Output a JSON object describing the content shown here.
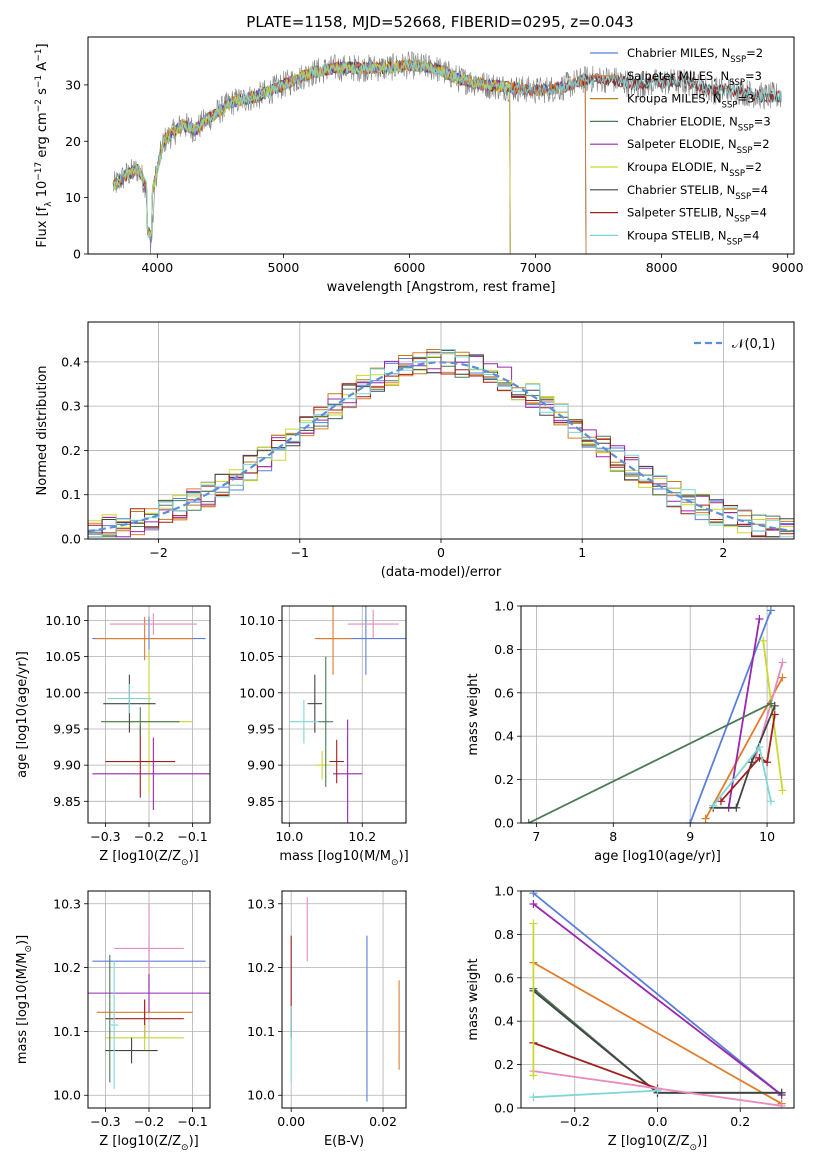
{
  "title": "PLATE=1158, MJD=52668, FIBERID=0295, z=0.043",
  "colors": [
    "#5b7fd9",
    "#e07c2a",
    "#c07d1a",
    "#4a7a57",
    "#9a27b0",
    "#c9d92f",
    "#444444",
    "#a01f1f",
    "#7fd6d6",
    "#e88bbf",
    "#7f7f7f"
  ],
  "chart_data": [
    {
      "id": "spectrum",
      "type": "line",
      "xlabel": "wavelength [Angstrom, rest frame]",
      "ylabel": "Flux [f_λ 10^-17 erg cm^-2 s^-1 A^-1]",
      "xlim": [
        3450,
        9050
      ],
      "ylim": [
        0,
        38.5
      ],
      "xticks": [
        4000,
        5000,
        6000,
        7000,
        8000,
        9000
      ],
      "yticks": [
        0,
        10,
        20,
        30
      ],
      "legend_position": "top-right",
      "legend": [
        {
          "label": "Chabrier MILES, N_SSP=2",
          "color": "#5b7fd9"
        },
        {
          "label": "Salpeter MILES, N_SSP=3",
          "color": "#e07c2a"
        },
        {
          "label": "Kroupa MILES, N_SSP=3",
          "color": "#c07d1a"
        },
        {
          "label": "Chabrier ELODIE, N_SSP=3",
          "color": "#4a7a57"
        },
        {
          "label": "Salpeter ELODIE, N_SSP=2",
          "color": "#9a27b0"
        },
        {
          "label": "Kroupa ELODIE, N_SSP=2",
          "color": "#c9d92f"
        },
        {
          "label": "Chabrier STELIB, N_SSP=4",
          "color": "#444444"
        },
        {
          "label": "Salpeter STELIB, N_SSP=4",
          "color": "#a01f1f"
        },
        {
          "label": "Kroupa STELIB, N_SSP=4",
          "color": "#7fd6d6"
        }
      ],
      "continuum": [
        [
          3650,
          12
        ],
        [
          3750,
          14
        ],
        [
          3850,
          15
        ],
        [
          3950,
          10
        ],
        [
          4050,
          20
        ],
        [
          4200,
          23
        ],
        [
          4300,
          22
        ],
        [
          4400,
          24
        ],
        [
          4600,
          27
        ],
        [
          4800,
          28
        ],
        [
          5000,
          30
        ],
        [
          5200,
          32
        ],
        [
          5400,
          33
        ],
        [
          5600,
          33
        ],
        [
          5800,
          33
        ],
        [
          6000,
          33.5
        ],
        [
          6200,
          33
        ],
        [
          6400,
          31
        ],
        [
          6600,
          30
        ],
        [
          6800,
          29.5
        ],
        [
          7000,
          29
        ],
        [
          7200,
          29.5
        ],
        [
          7400,
          31
        ],
        [
          7600,
          31
        ],
        [
          7800,
          30
        ],
        [
          8000,
          30.5
        ],
        [
          8200,
          30.5
        ],
        [
          8400,
          29
        ],
        [
          8600,
          29
        ],
        [
          8800,
          28
        ],
        [
          8950,
          28
        ]
      ],
      "model_end": {
        "miles": 7400,
        "elodie": 6800,
        "stelib": 8950
      }
    },
    {
      "id": "residuals",
      "type": "histogram",
      "xlabel": "(data-model)/error",
      "ylabel": "Normed distribution",
      "xlim": [
        -2.5,
        2.5
      ],
      "ylim": [
        0,
        0.49
      ],
      "xticks": [
        -2,
        -1,
        0,
        1,
        2
      ],
      "yticks": [
        0.0,
        0.1,
        0.2,
        0.3,
        0.4
      ],
      "legend_position": "top-right",
      "reference_curve": {
        "label": "𝒩(0,1)",
        "mean": 0,
        "std": 1,
        "color": "#5b8fd9"
      }
    },
    {
      "id": "age_vs_Z",
      "type": "scatter",
      "xlabel": "Z [log10(Z/Z_sun)]",
      "ylabel": "age [log10(age/yr)]",
      "xlim": [
        -0.34,
        -0.06
      ],
      "ylim": [
        9.82,
        10.12
      ],
      "xticks": [
        -0.3,
        -0.2,
        -0.1
      ],
      "yticks": [
        9.85,
        9.9,
        9.95,
        10.0,
        10.05,
        10.1
      ],
      "points": [
        {
          "x": -0.2,
          "y": 10.075,
          "xerr": 0.13,
          "yerr": 0.03,
          "color": "#5b7fd9"
        },
        {
          "x": -0.21,
          "y": 10.075,
          "xerr": 0.11,
          "yerr": 0.03,
          "color": "#e07c2a"
        },
        {
          "x": -0.19,
          "y": 10.095,
          "xerr": 0.1,
          "yerr": 0.015,
          "color": "#e88bbf"
        },
        {
          "x": -0.2,
          "y": 9.96,
          "xerr": 0.1,
          "yerr": 0.1,
          "color": "#c9d92f"
        },
        {
          "x": -0.19,
          "y": 9.888,
          "xerr": 0.14,
          "yerr": 0.05,
          "color": "#9a27b0"
        },
        {
          "x": -0.22,
          "y": 9.905,
          "xerr": 0.08,
          "yerr": 0.05,
          "color": "#a01f1f"
        },
        {
          "x": -0.22,
          "y": 9.96,
          "xerr": 0.09,
          "yerr": 0.02,
          "color": "#4a7a57"
        },
        {
          "x": -0.245,
          "y": 9.985,
          "xerr": 0.06,
          "yerr": 0.04,
          "color": "#444444"
        },
        {
          "x": -0.245,
          "y": 9.992,
          "xerr": 0.05,
          "yerr": 0.02,
          "color": "#7fd6d6"
        }
      ]
    },
    {
      "id": "age_vs_mass",
      "type": "scatter",
      "xlabel": "mass [log10(M/M_sun)]",
      "ylabel": "",
      "xlim": [
        9.98,
        10.32
      ],
      "ylim": [
        9.82,
        10.12
      ],
      "xticks": [
        10.0,
        10.2
      ],
      "yticks": [
        9.85,
        9.9,
        9.95,
        10.0,
        10.05,
        10.1
      ],
      "points": [
        {
          "x": 10.21,
          "y": 10.075,
          "xerr": 0.13,
          "yerr": 0.05,
          "color": "#5b7fd9"
        },
        {
          "x": 10.12,
          "y": 10.075,
          "xerr": 0.05,
          "yerr": 0.05,
          "color": "#e07c2a"
        },
        {
          "x": 10.23,
          "y": 10.095,
          "xerr": 0.07,
          "yerr": 0.02,
          "color": "#e88bbf"
        },
        {
          "x": 10.09,
          "y": 9.9,
          "xerr": 0.02,
          "yerr": 0.02,
          "color": "#c9d92f"
        },
        {
          "x": 10.16,
          "y": 9.888,
          "xerr": 0.04,
          "yerr": 0.075,
          "color": "#9a27b0"
        },
        {
          "x": 10.13,
          "y": 9.905,
          "xerr": 0.02,
          "yerr": 0.03,
          "color": "#a01f1f"
        },
        {
          "x": 10.1,
          "y": 9.96,
          "xerr": 0.02,
          "yerr": 0.09,
          "color": "#4a7a57"
        },
        {
          "x": 10.07,
          "y": 9.985,
          "xerr": 0.02,
          "yerr": 0.04,
          "color": "#444444"
        },
        {
          "x": 10.04,
          "y": 9.96,
          "xerr": 0.04,
          "yerr": 0.03,
          "color": "#7fd6d6"
        }
      ]
    },
    {
      "id": "weight_vs_age",
      "type": "line",
      "xlabel": "age [log10(age/yr)]",
      "ylabel": "mass weight",
      "xlim": [
        6.8,
        10.35
      ],
      "ylim": [
        0,
        1.0
      ],
      "xticks": [
        7,
        8,
        9,
        10
      ],
      "yticks": [
        0.0,
        0.2,
        0.4,
        0.6,
        0.8,
        1.0
      ],
      "series": [
        {
          "color": "#5b7fd9",
          "points": [
            [
              9.0,
              0.0
            ],
            [
              10.05,
              0.98
            ]
          ]
        },
        {
          "color": "#e07c2a",
          "points": [
            [
              9.2,
              0.02
            ],
            [
              10.2,
              0.67
            ]
          ]
        },
        {
          "color": "#e88bbf",
          "points": [
            [
              9.85,
              0.3
            ],
            [
              10.2,
              0.74
            ]
          ]
        },
        {
          "color": "#9a27b0",
          "points": [
            [
              9.5,
              0.07
            ],
            [
              9.9,
              0.94
            ]
          ]
        },
        {
          "color": "#c9d92f",
          "points": [
            [
              9.95,
              0.84
            ],
            [
              10.2,
              0.15
            ]
          ]
        },
        {
          "color": "#4a7a57",
          "points": [
            [
              6.9,
              0.0
            ],
            [
              10.05,
              0.55
            ]
          ]
        },
        {
          "color": "#444444",
          "points": [
            [
              9.3,
              0.07
            ],
            [
              9.6,
              0.07
            ],
            [
              9.8,
              0.28
            ],
            [
              10.1,
              0.54
            ]
          ]
        },
        {
          "color": "#a01f1f",
          "points": [
            [
              9.4,
              0.1
            ],
            [
              9.9,
              0.3
            ],
            [
              10.0,
              0.28
            ],
            [
              10.1,
              0.5
            ]
          ]
        },
        {
          "color": "#7fd6d6",
          "points": [
            [
              9.3,
              0.08
            ],
            [
              9.9,
              0.35
            ],
            [
              10.05,
              0.1
            ]
          ]
        }
      ]
    },
    {
      "id": "mass_vs_Z",
      "type": "scatter",
      "xlabel": "Z [log10(Z/Z_sun)]",
      "ylabel": "mass [log10(M/M_sun)]",
      "xlim": [
        -0.34,
        -0.06
      ],
      "ylim": [
        9.98,
        10.32
      ],
      "xticks": [
        -0.3,
        -0.2,
        -0.1
      ],
      "yticks": [
        10.0,
        10.1,
        10.2,
        10.3
      ],
      "points": [
        {
          "x": -0.2,
          "y": 10.21,
          "xerr": 0.13,
          "yerr": 0.04,
          "color": "#5b7fd9"
        },
        {
          "x": -0.21,
          "y": 10.13,
          "xerr": 0.11,
          "yerr": 0.02,
          "color": "#e07c2a"
        },
        {
          "x": -0.2,
          "y": 10.23,
          "xerr": 0.08,
          "yerr": 0.07,
          "color": "#e88bbf"
        },
        {
          "x": -0.2,
          "y": 10.16,
          "xerr": 0.14,
          "yerr": 0.03,
          "color": "#9a27b0"
        },
        {
          "x": -0.21,
          "y": 10.12,
          "xerr": 0.09,
          "yerr": 0.03,
          "color": "#a01f1f"
        },
        {
          "x": -0.21,
          "y": 10.09,
          "xerr": 0.09,
          "yerr": 0.02,
          "color": "#c9d92f"
        },
        {
          "x": -0.24,
          "y": 10.07,
          "xerr": 0.06,
          "yerr": 0.02,
          "color": "#444444"
        },
        {
          "x": -0.29,
          "y": 10.12,
          "xerr": 0.01,
          "yerr": 0.1,
          "color": "#4a7a57"
        },
        {
          "x": -0.28,
          "y": 10.11,
          "xerr": 0.01,
          "yerr": 0.1,
          "color": "#7fd6d6"
        }
      ]
    },
    {
      "id": "mass_vs_EBV",
      "type": "scatter",
      "xlabel": "E(B-V)",
      "ylabel": "",
      "xlim": [
        -0.002,
        0.025
      ],
      "ylim": [
        9.98,
        10.32
      ],
      "xticks": [
        0.0,
        0.02
      ],
      "yticks": [
        10.0,
        10.1,
        10.2,
        10.3
      ],
      "points": [
        {
          "x": 0.0,
          "y": 10.17,
          "xerr": 0,
          "yerr": 0.08,
          "color": "#a01f1f"
        },
        {
          "x": 0.0,
          "y": 10.08,
          "xerr": 0,
          "yerr": 0.06,
          "color": "#7fd6d6"
        },
        {
          "x": 0.0035,
          "y": 10.26,
          "xerr": 0,
          "yerr": 0.05,
          "color": "#e88bbf"
        },
        {
          "x": 0.0165,
          "y": 10.12,
          "xerr": 0,
          "yerr": 0.13,
          "color": "#5b7fd9"
        },
        {
          "x": 0.0235,
          "y": 10.11,
          "xerr": 0,
          "yerr": 0.07,
          "color": "#e07c2a"
        }
      ]
    },
    {
      "id": "weight_vs_Z",
      "type": "line",
      "xlabel": "Z [log10(Z/Z_sun)]",
      "ylabel": "mass weight",
      "xlim": [
        -0.33,
        0.33
      ],
      "ylim": [
        0,
        1.0
      ],
      "xticks": [
        -0.2,
        0.0,
        0.2
      ],
      "yticks": [
        0.0,
        0.2,
        0.4,
        0.6,
        0.8,
        1.0
      ],
      "series": [
        {
          "color": "#5b7fd9",
          "points": [
            [
              -0.3,
              0.99
            ],
            [
              0.3,
              0.06
            ]
          ]
        },
        {
          "color": "#9a27b0",
          "points": [
            [
              -0.3,
              0.94
            ],
            [
              0.3,
              0.06
            ]
          ]
        },
        {
          "color": "#e07c2a",
          "points": [
            [
              -0.3,
              0.67
            ],
            [
              0.3,
              0.02
            ]
          ]
        },
        {
          "color": "#4a7a57",
          "points": [
            [
              -0.3,
              0.55
            ],
            [
              0.0,
              0.07
            ],
            [
              0.3,
              0.07
            ]
          ]
        },
        {
          "color": "#444444",
          "points": [
            [
              -0.3,
              0.54
            ],
            [
              0.0,
              0.07
            ],
            [
              0.3,
              0.07
            ]
          ]
        },
        {
          "color": "#a01f1f",
          "points": [
            [
              -0.3,
              0.3
            ],
            [
              0.0,
              0.09
            ]
          ]
        },
        {
          "color": "#e88bbf",
          "points": [
            [
              -0.3,
              0.17
            ],
            [
              0.3,
              0.01
            ]
          ]
        },
        {
          "color": "#7fd6d6",
          "points": [
            [
              -0.3,
              0.05
            ],
            [
              0.0,
              0.08
            ]
          ]
        },
        {
          "color": "#c9d92f",
          "points": [
            [
              -0.3,
              0.85
            ],
            [
              -0.3,
              0.15
            ]
          ]
        }
      ]
    }
  ]
}
